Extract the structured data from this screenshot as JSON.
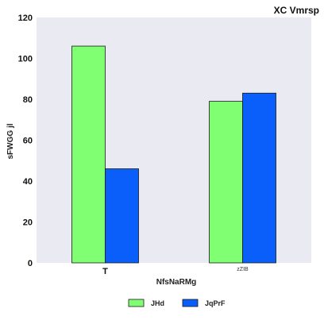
{
  "chart_data": {
    "type": "bar",
    "title": "XC Vmrsp",
    "xlabel": "NfsNaRMg",
    "ylabel": "sFWGG jl",
    "categories": [
      "T",
      "zZIB"
    ],
    "ylim": [
      0,
      120
    ],
    "yticks": [
      0,
      20,
      40,
      60,
      80,
      100,
      120
    ],
    "series": [
      {
        "name": "JHd",
        "color": "#80ff73",
        "values": [
          106,
          79
        ]
      },
      {
        "name": "JqPrF",
        "color": "#0a5ffa",
        "values": [
          46,
          83
        ]
      }
    ],
    "grid": false,
    "background": "#eaeaf2",
    "legend_position": "bottom-center"
  }
}
